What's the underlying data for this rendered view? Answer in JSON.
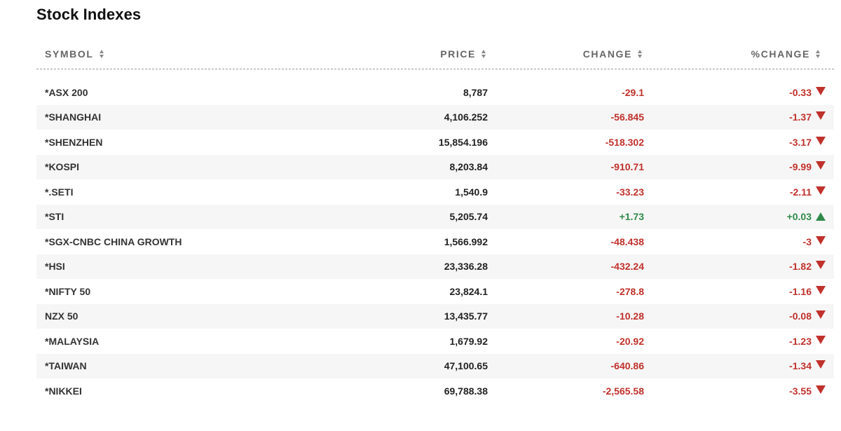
{
  "title": "Stock Indexes",
  "columns": {
    "symbol": "SYMBOL",
    "price": "PRICE",
    "change": "CHANGE",
    "pct_change": "%CHANGE"
  },
  "colors": {
    "negative": "#c0312b",
    "positive": "#2f8a4a"
  },
  "rows": [
    {
      "symbol": "*ASX 200",
      "price": "8,787",
      "change": "-29.1",
      "pct_change": "-0.33",
      "direction": "down"
    },
    {
      "symbol": "*SHANGHAI",
      "price": "4,106.252",
      "change": "-56.845",
      "pct_change": "-1.37",
      "direction": "down"
    },
    {
      "symbol": "*SHENZHEN",
      "price": "15,854.196",
      "change": "-518.302",
      "pct_change": "-3.17",
      "direction": "down"
    },
    {
      "symbol": "*KOSPI",
      "price": "8,203.84",
      "change": "-910.71",
      "pct_change": "-9.99",
      "direction": "down"
    },
    {
      "symbol": "*.SETI",
      "price": "1,540.9",
      "change": "-33.23",
      "pct_change": "-2.11",
      "direction": "down"
    },
    {
      "symbol": "*STI",
      "price": "5,205.74",
      "change": "+1.73",
      "pct_change": "+0.03",
      "direction": "up"
    },
    {
      "symbol": "*SGX-CNBC CHINA GROWTH",
      "price": "1,566.992",
      "change": "-48.438",
      "pct_change": "-3",
      "direction": "down"
    },
    {
      "symbol": "*HSI",
      "price": "23,336.28",
      "change": "-432.24",
      "pct_change": "-1.82",
      "direction": "down"
    },
    {
      "symbol": "*NIFTY 50",
      "price": "23,824.1",
      "change": "-278.8",
      "pct_change": "-1.16",
      "direction": "down"
    },
    {
      "symbol": "NZX 50",
      "price": "13,435.77",
      "change": "-10.28",
      "pct_change": "-0.08",
      "direction": "down"
    },
    {
      "symbol": "*MALAYSIA",
      "price": "1,679.92",
      "change": "-20.92",
      "pct_change": "-1.23",
      "direction": "down"
    },
    {
      "symbol": "*TAIWAN",
      "price": "47,100.65",
      "change": "-640.86",
      "pct_change": "-1.34",
      "direction": "down"
    },
    {
      "symbol": "*NIKKEI",
      "price": "69,788.38",
      "change": "-2,565.58",
      "pct_change": "-3.55",
      "direction": "down"
    }
  ]
}
